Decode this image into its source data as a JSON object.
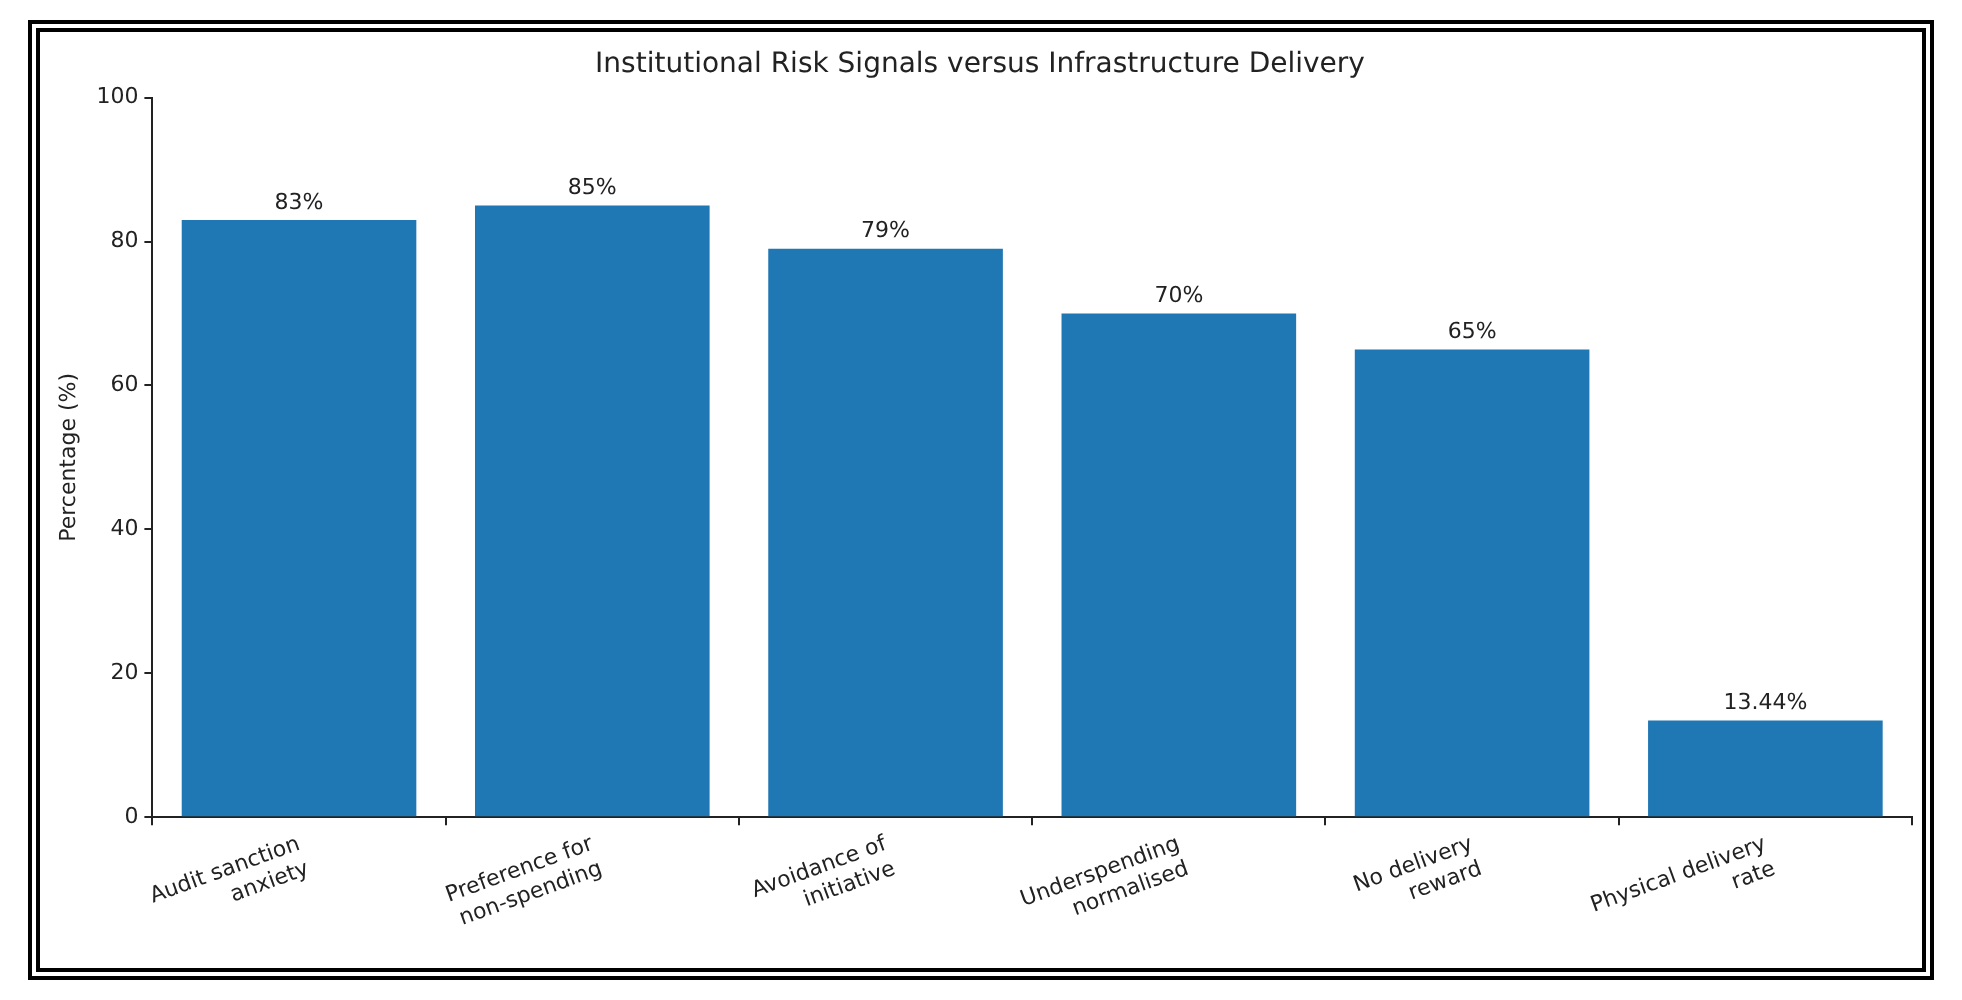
{
  "chart_data": {
    "type": "bar",
    "title": "Institutional Risk Signals versus Infrastructure Delivery",
    "ylabel": "Percentage (%)",
    "categories": [
      "Audit sanction\nanxiety",
      "Preference for\nnon-spending",
      "Avoidance of\ninitiative",
      "Underspending\nnormalised",
      "No delivery\nreward",
      "Physical delivery\nrate"
    ],
    "values": [
      83,
      85,
      79,
      70,
      65,
      13.44
    ],
    "value_labels": [
      "83%",
      "85%",
      "79%",
      "70%",
      "65%",
      "13.44%"
    ],
    "color": "#1f77b4",
    "ylim": [
      0,
      100
    ],
    "yticks": [
      0,
      20,
      40,
      60,
      80,
      100
    ],
    "grid": false,
    "legend": false
  }
}
